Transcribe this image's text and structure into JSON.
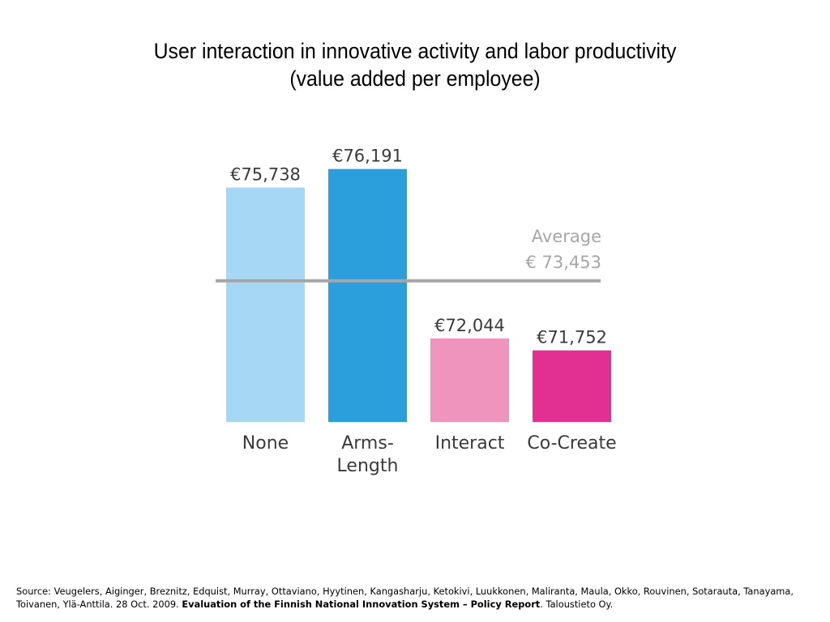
{
  "chart_data": {
    "type": "bar",
    "title": "User interaction in innovative activity and labor productivity",
    "subtitle": "(value added per employee)",
    "categories": [
      "None",
      "Arms-Length",
      "Interact",
      "Co-Create"
    ],
    "category_lines": [
      [
        "None"
      ],
      [
        "Arms-",
        "Length"
      ],
      [
        "Interact"
      ],
      [
        "Co-Create"
      ]
    ],
    "values": [
      75738,
      76191,
      72044,
      71752
    ],
    "value_labels": [
      "€75,738",
      "€76,191",
      "€72,044",
      "€71,752"
    ],
    "bar_colors": [
      "#a6d8f5",
      "#2a9fdc",
      "#ef94bd",
      "#e23092"
    ],
    "reference_line": {
      "value": 73453,
      "label_line1": "Average",
      "label_line2": "€ 73,453",
      "color": "#a6a6a6"
    },
    "ylim": [
      70000,
      76700
    ],
    "xlabel": "",
    "ylabel": "",
    "grid": false
  },
  "source": {
    "prefix": "Source: Veugelers, Aiginger, Breznitz, Edquist, Murray, Ottaviano, Hyytinen, Kangasharju, Ketokivi, Luukkonen, Maliranta, Maula, Okko, Rouvinen, Sotarauta, Tanayama, Toivanen, Ylä-Anttila. 28 Oct. 2009. ",
    "report_title": "Evaluation of the Finnish National Innovation System – Policy Report",
    "suffix": ". Taloustieto Oy."
  }
}
